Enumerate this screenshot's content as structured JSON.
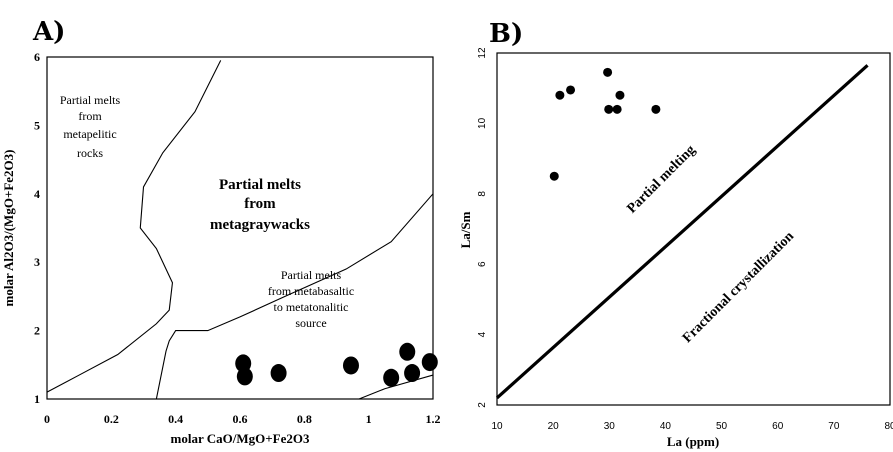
{
  "chart_data": [
    {
      "panel": "A)",
      "type": "scatter",
      "xlabel": "molar CaO/MgO+Fe2O3",
      "ylabel": "molar Al2O3/(MgO+Fe2O3)",
      "xlim": [
        0,
        1.2
      ],
      "ylim": [
        1,
        6
      ],
      "x_ticks": [
        "0",
        "0.2",
        "0.4",
        "0.6",
        "0.8",
        "1",
        "1.2"
      ],
      "y_ticks": [
        "1",
        "2",
        "3",
        "4",
        "5",
        "6"
      ],
      "regions": {
        "metapelitic": [
          "Partial melts",
          "from",
          "metapelitic",
          "rocks"
        ],
        "metagraywacks": [
          "Partial melts",
          "from",
          "metagraywacks"
        ],
        "metabasaltic": [
          "Partial melts",
          "from metabasaltic",
          "to metatonalitic",
          "source"
        ]
      },
      "points": [
        {
          "x": 0.61,
          "y": 1.52
        },
        {
          "x": 0.615,
          "y": 1.33
        },
        {
          "x": 0.72,
          "y": 1.38
        },
        {
          "x": 0.945,
          "y": 1.49
        },
        {
          "x": 1.07,
          "y": 1.31
        },
        {
          "x": 1.12,
          "y": 1.69
        },
        {
          "x": 1.135,
          "y": 1.38
        },
        {
          "x": 1.19,
          "y": 1.54
        }
      ],
      "boundaries": [
        [
          [
            0.0,
            1.1
          ],
          [
            0.1,
            1.35
          ],
          [
            0.22,
            1.65
          ],
          [
            0.34,
            2.1
          ],
          [
            0.38,
            2.3
          ],
          [
            0.39,
            2.7
          ],
          [
            0.34,
            3.2
          ],
          [
            0.29,
            3.5
          ],
          [
            0.3,
            4.1
          ],
          [
            0.36,
            4.6
          ],
          [
            0.46,
            5.2
          ],
          [
            0.54,
            5.95
          ]
        ],
        [
          [
            0.34,
            1.0
          ],
          [
            0.37,
            1.7
          ],
          [
            0.38,
            1.85
          ],
          [
            0.4,
            2.0
          ],
          [
            0.5,
            2.0
          ],
          [
            0.6,
            2.2
          ],
          [
            0.74,
            2.5
          ],
          [
            0.93,
            2.9
          ],
          [
            1.07,
            3.3
          ],
          [
            1.2,
            4.0
          ]
        ],
        [
          [
            0.97,
            1.0
          ],
          [
            1.05,
            1.15
          ],
          [
            1.2,
            1.35
          ]
        ]
      ]
    },
    {
      "panel": "B)",
      "type": "scatter",
      "xlabel": "La (ppm)",
      "ylabel": "La/Sm",
      "xlim": [
        10,
        80
      ],
      "ylim": [
        2,
        12
      ],
      "x_ticks": [
        "10",
        "20",
        "30",
        "40",
        "50",
        "60",
        "70",
        "80"
      ],
      "y_ticks": [
        "2",
        "4",
        "6",
        "8",
        "10",
        "12"
      ],
      "labels": {
        "partial_melting": "Partial melting",
        "fractional_crystallization": "Fractional crystallization"
      },
      "points": [
        {
          "x": 20.2,
          "y": 8.5
        },
        {
          "x": 21.2,
          "y": 10.8
        },
        {
          "x": 23.1,
          "y": 10.95
        },
        {
          "x": 29.7,
          "y": 11.45
        },
        {
          "x": 29.9,
          "y": 10.4
        },
        {
          "x": 31.4,
          "y": 10.4
        },
        {
          "x": 31.9,
          "y": 10.8
        },
        {
          "x": 38.3,
          "y": 10.4
        }
      ],
      "trend_line": [
        [
          10,
          2.2
        ],
        [
          76,
          11.65
        ]
      ]
    }
  ]
}
